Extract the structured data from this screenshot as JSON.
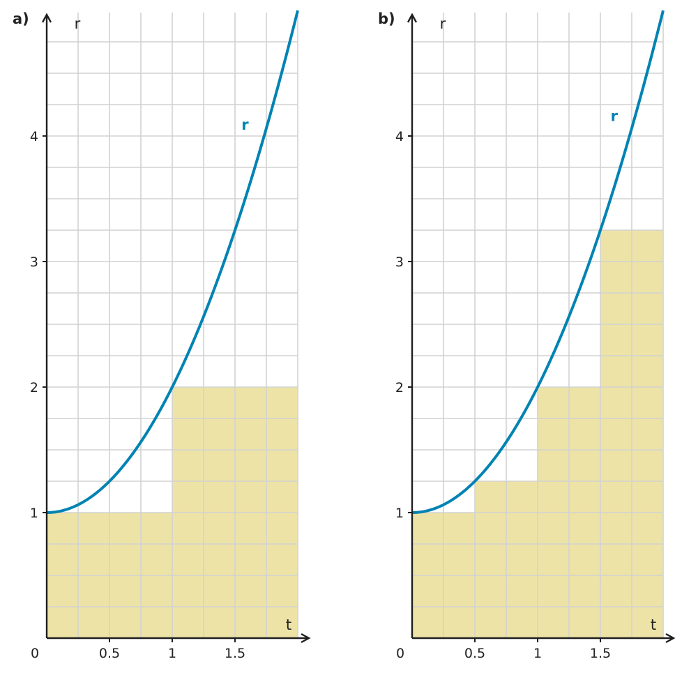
{
  "colors": {
    "curve": "#0083b3",
    "fill": "#ede3a6",
    "grid": "#d2d2d2",
    "axis": "#1e1e1e"
  },
  "chart_data": [
    {
      "type": "line",
      "panel_label": "a)",
      "xlabel": "t",
      "ylabel": "r",
      "curve_label": "r",
      "function": "r = t^2 + 1",
      "xlim": [
        0,
        2
      ],
      "ylim": [
        0,
        5
      ],
      "grid": true,
      "grid_step": 0.25,
      "x_ticks": [
        0.5,
        1,
        1.5
      ],
      "x_tick_labels": [
        "0.5",
        "1",
        "1.5"
      ],
      "y_ticks": [
        1,
        2,
        3,
        4
      ],
      "y_tick_labels": [
        "1",
        "2",
        "3",
        "4"
      ],
      "origin_label": "0",
      "curve_points": {
        "x": [
          0,
          0.25,
          0.5,
          0.75,
          1,
          1.25,
          1.5,
          1.75,
          2
        ],
        "y": [
          1,
          1.0625,
          1.25,
          1.5625,
          2,
          2.5625,
          3.25,
          4.0625,
          5
        ]
      },
      "curve_label_position": [
        1.58,
        4.05
      ],
      "shaded_bars": [
        {
          "x0": 0,
          "x1": 1,
          "height": 1
        },
        {
          "x0": 1,
          "x1": 2,
          "height": 2
        }
      ]
    },
    {
      "type": "line",
      "panel_label": "b)",
      "xlabel": "t",
      "ylabel": "r",
      "curve_label": "r",
      "function": "r = t^2 + 1",
      "xlim": [
        0,
        2
      ],
      "ylim": [
        0,
        5
      ],
      "grid": true,
      "grid_step": 0.25,
      "x_ticks": [
        0.5,
        1,
        1.5
      ],
      "x_tick_labels": [
        "0.5",
        "1",
        "1.5"
      ],
      "y_ticks": [
        1,
        2,
        3,
        4
      ],
      "y_tick_labels": [
        "1",
        "2",
        "3",
        "4"
      ],
      "origin_label": "0",
      "curve_points": {
        "x": [
          0,
          0.25,
          0.5,
          0.75,
          1,
          1.25,
          1.5,
          1.75,
          2
        ],
        "y": [
          1,
          1.0625,
          1.25,
          1.5625,
          2,
          2.5625,
          3.25,
          4.0625,
          5
        ]
      },
      "curve_label_position": [
        1.61,
        4.12
      ],
      "shaded_bars": [
        {
          "x0": 0,
          "x1": 0.5,
          "height": 1
        },
        {
          "x0": 0.5,
          "x1": 1,
          "height": 1.25
        },
        {
          "x0": 1,
          "x1": 1.5,
          "height": 2
        },
        {
          "x0": 1.5,
          "x1": 2,
          "height": 3.25
        }
      ]
    }
  ]
}
